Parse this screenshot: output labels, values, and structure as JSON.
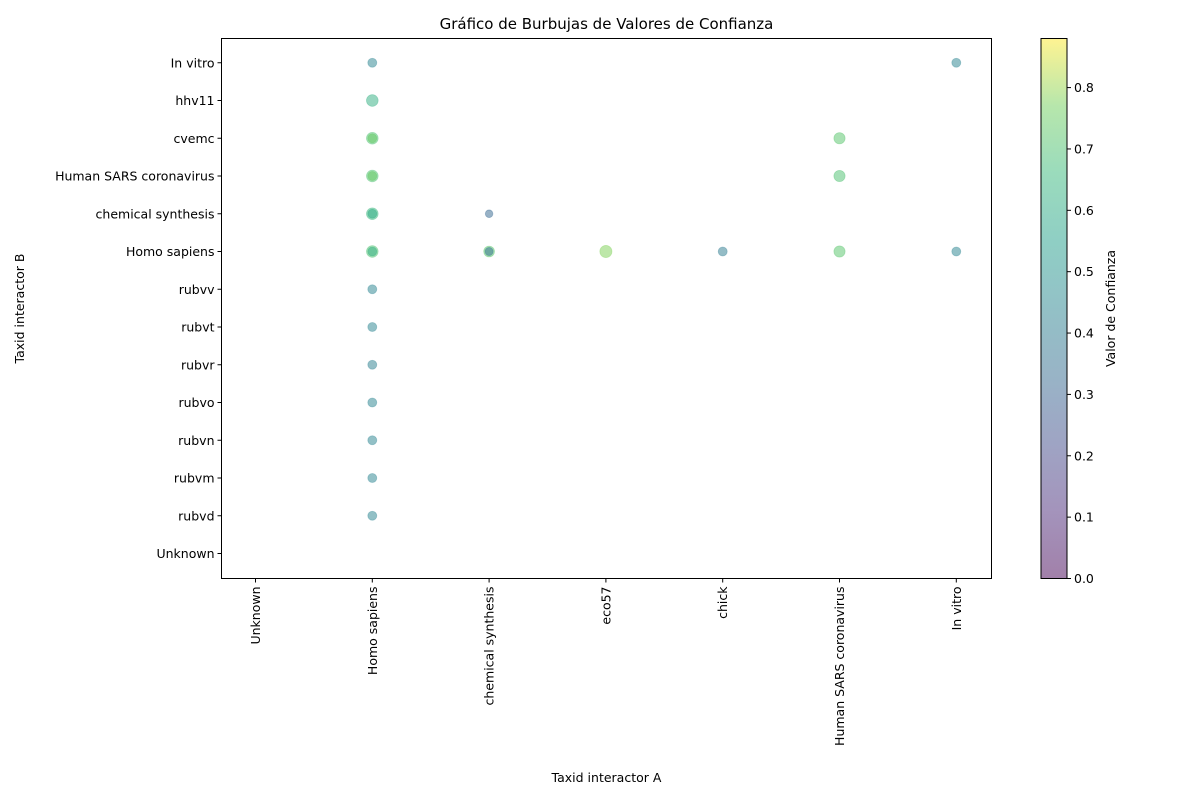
{
  "chart_data": {
    "type": "scatter",
    "title": "Gráfico de Burbujas de Valores de Confianza",
    "xlabel": "Taxid interactor A",
    "ylabel": "Taxid interactor B",
    "x_categories": [
      "Unknown",
      "Homo sapiens",
      "chemical synthesis",
      "eco57",
      "chick",
      "Human SARS coronavirus",
      "In vitro"
    ],
    "y_categories": [
      "Unknown",
      "rubvd",
      "rubvm",
      "rubvn",
      "rubvo",
      "rubvr",
      "rubvt",
      "rubvv",
      "Homo sapiens",
      "chemical synthesis",
      "Human SARS coronavirus",
      "cvemc",
      "hhv11",
      "In vitro"
    ],
    "grid": false,
    "colorbar": {
      "label": "Valor de Confianza",
      "range": [
        0,
        0.88
      ],
      "ticks": [
        0.0,
        0.1,
        0.2,
        0.3,
        0.4,
        0.5,
        0.6,
        0.7,
        0.8
      ],
      "tick_labels": [
        "0.0",
        "0.1",
        "0.2",
        "0.3",
        "0.4",
        "0.5",
        "0.6",
        "0.7",
        "0.8"
      ],
      "colormap": "viridis",
      "alpha": 0.5
    },
    "points": [
      {
        "x": "Homo sapiens",
        "y": "In vitro",
        "value": 0.44,
        "size": 1
      },
      {
        "x": "Homo sapiens",
        "y": "hhv11",
        "value": 0.62,
        "size": 1.3
      },
      {
        "x": "Homo sapiens",
        "y": "cvemc",
        "value": 0.7,
        "size": 1.3
      },
      {
        "x": "Homo sapiens",
        "y": "cvemc",
        "value": 0.75,
        "size": 1
      },
      {
        "x": "Homo sapiens",
        "y": "Human SARS coronavirus",
        "value": 0.7,
        "size": 1.3
      },
      {
        "x": "Homo sapiens",
        "y": "Human SARS coronavirus",
        "value": 0.75,
        "size": 1
      },
      {
        "x": "Homo sapiens",
        "y": "chemical synthesis",
        "value": 0.65,
        "size": 1.3
      },
      {
        "x": "Homo sapiens",
        "y": "chemical synthesis",
        "value": 0.6,
        "size": 1
      },
      {
        "x": "Homo sapiens",
        "y": "Homo sapiens",
        "value": 0.7,
        "size": 1.3
      },
      {
        "x": "Homo sapiens",
        "y": "Homo sapiens",
        "value": 0.62,
        "size": 1
      },
      {
        "x": "Homo sapiens",
        "y": "rubvv",
        "value": 0.44,
        "size": 1
      },
      {
        "x": "Homo sapiens",
        "y": "rubvt",
        "value": 0.44,
        "size": 1
      },
      {
        "x": "Homo sapiens",
        "y": "rubvr",
        "value": 0.42,
        "size": 1
      },
      {
        "x": "Homo sapiens",
        "y": "rubvo",
        "value": 0.44,
        "size": 1
      },
      {
        "x": "Homo sapiens",
        "y": "rubvn",
        "value": 0.44,
        "size": 1
      },
      {
        "x": "Homo sapiens",
        "y": "rubvm",
        "value": 0.44,
        "size": 1
      },
      {
        "x": "Homo sapiens",
        "y": "rubvd",
        "value": 0.44,
        "size": 1
      },
      {
        "x": "chemical synthesis",
        "y": "chemical synthesis",
        "value": 0.32,
        "size": 0.85
      },
      {
        "x": "chemical synthesis",
        "y": "Homo sapiens",
        "value": 0.72,
        "size": 1.2
      },
      {
        "x": "chemical synthesis",
        "y": "Homo sapiens",
        "value": 0.35,
        "size": 0.9
      },
      {
        "x": "eco57",
        "y": "Homo sapiens",
        "value": 0.78,
        "size": 1.35
      },
      {
        "x": "chick",
        "y": "Homo sapiens",
        "value": 0.4,
        "size": 1
      },
      {
        "x": "Human SARS coronavirus",
        "y": "cvemc",
        "value": 0.72,
        "size": 1.25
      },
      {
        "x": "Human SARS coronavirus",
        "y": "Human SARS coronavirus",
        "value": 0.7,
        "size": 1.25
      },
      {
        "x": "Human SARS coronavirus",
        "y": "Homo sapiens",
        "value": 0.72,
        "size": 1.25
      },
      {
        "x": "In vitro",
        "y": "In vitro",
        "value": 0.44,
        "size": 1
      },
      {
        "x": "In vitro",
        "y": "Homo sapiens",
        "value": 0.44,
        "size": 1
      }
    ]
  }
}
